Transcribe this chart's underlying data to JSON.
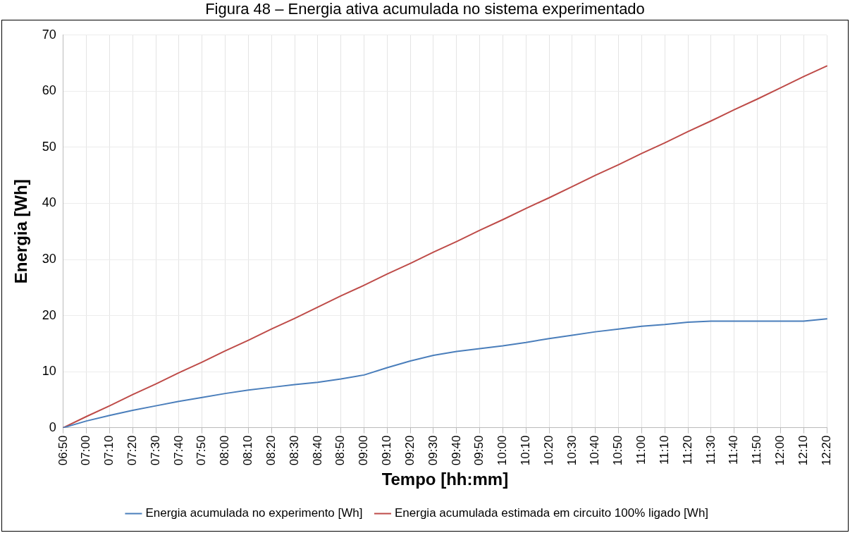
{
  "chart_data": {
    "type": "line",
    "title": "Figura 48 – Energia ativa acumulada no sistema experimentado",
    "xlabel": "Tempo [hh:mm]",
    "ylabel": "Energia [Wh]",
    "categories": [
      "06:50",
      "07:00",
      "07:10",
      "07:20",
      "07:30",
      "07:40",
      "07:50",
      "08:00",
      "08:10",
      "08:20",
      "08:30",
      "08:40",
      "08:50",
      "09:00",
      "09:10",
      "09:20",
      "09:30",
      "09:40",
      "09:50",
      "10:00",
      "10:10",
      "10:20",
      "10:30",
      "10:40",
      "10:50",
      "11:00",
      "11:10",
      "11:20",
      "11:30",
      "11:40",
      "11:50",
      "12:00",
      "12:10",
      "12:20"
    ],
    "series": [
      {
        "name": "Energia acumulada no experimento [Wh]",
        "color": "#4a7ebb",
        "values": [
          0,
          1.2,
          2.2,
          3.1,
          3.9,
          4.7,
          5.4,
          6.1,
          6.7,
          7.2,
          7.7,
          8.1,
          8.7,
          9.4,
          10.7,
          11.9,
          12.9,
          13.6,
          14.1,
          14.6,
          15.2,
          15.9,
          16.5,
          17.1,
          17.6,
          18.1,
          18.4,
          18.8,
          19.0,
          19.0,
          19.0,
          19.0,
          19.0,
          19.4
        ]
      },
      {
        "name": "Energia acumulada estimada em circuito 100% ligado [Wh]",
        "color": "#be4b48",
        "values": [
          0,
          2.0,
          3.9,
          5.9,
          7.8,
          9.8,
          11.7,
          13.7,
          15.6,
          17.6,
          19.5,
          21.5,
          23.5,
          25.4,
          27.4,
          29.3,
          31.3,
          33.2,
          35.2,
          37.1,
          39.1,
          41.0,
          43.0,
          45.0,
          46.9,
          48.9,
          50.8,
          52.8,
          54.7,
          56.7,
          58.6,
          60.6,
          62.6,
          64.5
        ]
      }
    ],
    "ylim": [
      0,
      70
    ],
    "yticks": [
      0,
      10,
      20,
      30,
      40,
      50,
      60,
      70
    ],
    "grid": true,
    "legend": "bottom",
    "marker": "none",
    "line_style": "solid"
  }
}
